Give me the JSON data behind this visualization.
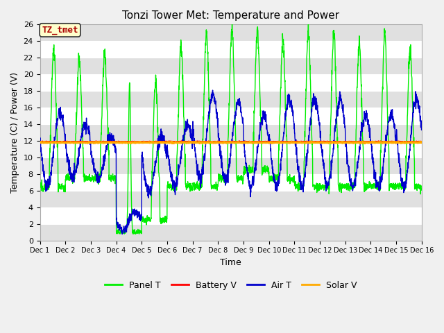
{
  "title": "Tonzi Tower Met: Temperature and Power",
  "xlabel": "Time",
  "ylabel": "Temperature (C) / Power (V)",
  "ylim": [
    0,
    26
  ],
  "xlim_days": 15,
  "figure_facecolor": "#f0f0f0",
  "plot_bg_color": "#ffffff",
  "band_color": "#e0e0e0",
  "label_box_text": "TZ_tmet",
  "label_box_facecolor": "#ffffcc",
  "label_box_edgecolor": "#333333",
  "label_box_text_color": "#aa0000",
  "series": {
    "panel_t": {
      "color": "#00ee00",
      "label": "Panel T",
      "linewidth": 1.0
    },
    "battery_v": {
      "color": "#ff0000",
      "label": "Battery V",
      "linewidth": 2.0
    },
    "air_t": {
      "color": "#0000cc",
      "label": "Air T",
      "linewidth": 1.0
    },
    "solar_v": {
      "color": "#ffaa00",
      "label": "Solar V",
      "linewidth": 2.0
    }
  },
  "xtick_labels": [
    "Dec 1",
    "Dec 2",
    "Dec 3",
    "Dec 4",
    "Dec 5",
    "Dec 6",
    "Dec 7",
    "Dec 8",
    "Dec 9",
    "Dec 10",
    "Dec 11",
    "Dec 12",
    "Dec 13",
    "Dec 14",
    "Dec 15",
    "Dec 16"
  ],
  "ytick_values": [
    0,
    2,
    4,
    6,
    8,
    10,
    12,
    14,
    16,
    18,
    20,
    22,
    24,
    26
  ],
  "battery_v_level": 11.85,
  "solar_v_level": 11.8,
  "n_points_per_day": 144,
  "n_days": 15,
  "panel_peaks": [
    23.0,
    22.0,
    22.5,
    19.0,
    19.0,
    23.5,
    25.0,
    25.5,
    25.0,
    24.0,
    25.0,
    25.0,
    24.0,
    25.0,
    23.0
  ],
  "panel_mins": [
    6.5,
    7.5,
    7.5,
    1.0,
    2.5,
    6.5,
    6.5,
    7.5,
    8.5,
    7.5,
    6.5,
    6.5,
    6.5,
    6.5,
    6.5
  ],
  "air_peaks": [
    15.5,
    14.0,
    12.5,
    3.5,
    12.5,
    14.0,
    17.5,
    16.5,
    15.0,
    17.0,
    17.0,
    17.0,
    15.0,
    15.0,
    17.0
  ],
  "air_mins": [
    6.5,
    7.5,
    7.5,
    1.2,
    6.0,
    6.5,
    7.5,
    7.5,
    6.5,
    6.5,
    6.5,
    6.5,
    6.5,
    6.5,
    6.5
  ],
  "cloudy_days": [
    3
  ]
}
